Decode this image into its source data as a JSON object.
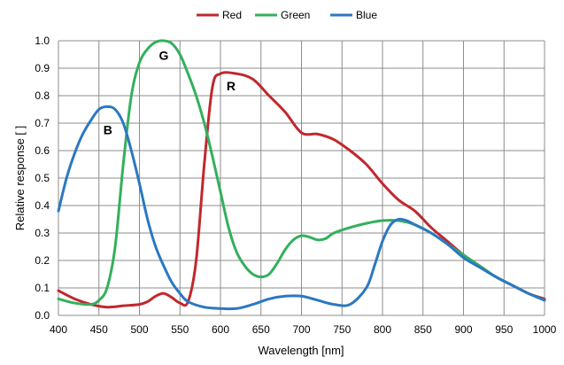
{
  "chart_data": {
    "type": "line",
    "title": "",
    "xlabel": "Wavelength [nm]",
    "ylabel": "Relative response [ ]",
    "xlim": [
      400,
      1000
    ],
    "ylim": [
      0.0,
      1.0
    ],
    "x_ticks": [
      "400",
      "450",
      "500",
      "550",
      "600",
      "650",
      "700",
      "750",
      "800",
      "850",
      "900",
      "950",
      "1000"
    ],
    "y_ticks": [
      "0.0",
      "0.1",
      "0.2",
      "0.3",
      "0.4",
      "0.5",
      "0.6",
      "0.7",
      "0.8",
      "0.9",
      "1.0"
    ],
    "grid": true,
    "legend_position": "top-center",
    "series": [
      {
        "name": "Red",
        "color": "#c0282e",
        "points": [
          [
            400,
            0.09
          ],
          [
            420,
            0.06
          ],
          [
            440,
            0.04
          ],
          [
            460,
            0.03
          ],
          [
            480,
            0.035
          ],
          [
            500,
            0.04
          ],
          [
            510,
            0.05
          ],
          [
            520,
            0.07
          ],
          [
            530,
            0.08
          ],
          [
            540,
            0.065
          ],
          [
            550,
            0.045
          ],
          [
            560,
            0.05
          ],
          [
            570,
            0.2
          ],
          [
            580,
            0.55
          ],
          [
            590,
            0.83
          ],
          [
            600,
            0.88
          ],
          [
            620,
            0.88
          ],
          [
            640,
            0.86
          ],
          [
            660,
            0.8
          ],
          [
            680,
            0.74
          ],
          [
            700,
            0.665
          ],
          [
            720,
            0.66
          ],
          [
            740,
            0.64
          ],
          [
            760,
            0.6
          ],
          [
            780,
            0.55
          ],
          [
            800,
            0.48
          ],
          [
            820,
            0.42
          ],
          [
            840,
            0.38
          ],
          [
            860,
            0.32
          ],
          [
            880,
            0.27
          ],
          [
            900,
            0.22
          ],
          [
            920,
            0.18
          ],
          [
            940,
            0.14
          ],
          [
            960,
            0.11
          ],
          [
            980,
            0.08
          ],
          [
            1000,
            0.06
          ]
        ]
      },
      {
        "name": "Green",
        "color": "#33b05c",
        "points": [
          [
            400,
            0.06
          ],
          [
            420,
            0.045
          ],
          [
            440,
            0.04
          ],
          [
            450,
            0.055
          ],
          [
            460,
            0.1
          ],
          [
            470,
            0.25
          ],
          [
            480,
            0.55
          ],
          [
            490,
            0.8
          ],
          [
            500,
            0.92
          ],
          [
            510,
            0.97
          ],
          [
            520,
            0.995
          ],
          [
            530,
            1.0
          ],
          [
            540,
            0.99
          ],
          [
            550,
            0.95
          ],
          [
            560,
            0.88
          ],
          [
            570,
            0.8
          ],
          [
            580,
            0.7
          ],
          [
            590,
            0.58
          ],
          [
            600,
            0.45
          ],
          [
            610,
            0.32
          ],
          [
            620,
            0.23
          ],
          [
            630,
            0.18
          ],
          [
            640,
            0.15
          ],
          [
            650,
            0.14
          ],
          [
            660,
            0.15
          ],
          [
            670,
            0.19
          ],
          [
            680,
            0.24
          ],
          [
            690,
            0.275
          ],
          [
            700,
            0.29
          ],
          [
            710,
            0.285
          ],
          [
            720,
            0.275
          ],
          [
            730,
            0.28
          ],
          [
            740,
            0.3
          ],
          [
            760,
            0.32
          ],
          [
            780,
            0.335
          ],
          [
            800,
            0.345
          ],
          [
            820,
            0.345
          ],
          [
            840,
            0.33
          ],
          [
            860,
            0.3
          ],
          [
            880,
            0.26
          ],
          [
            900,
            0.22
          ],
          [
            920,
            0.18
          ],
          [
            940,
            0.14
          ],
          [
            960,
            0.11
          ],
          [
            980,
            0.08
          ],
          [
            1000,
            0.055
          ]
        ]
      },
      {
        "name": "Blue",
        "color": "#2b78c2",
        "points": [
          [
            400,
            0.38
          ],
          [
            410,
            0.5
          ],
          [
            420,
            0.59
          ],
          [
            430,
            0.66
          ],
          [
            440,
            0.71
          ],
          [
            450,
            0.75
          ],
          [
            460,
            0.76
          ],
          [
            470,
            0.75
          ],
          [
            480,
            0.7
          ],
          [
            490,
            0.6
          ],
          [
            500,
            0.48
          ],
          [
            510,
            0.35
          ],
          [
            520,
            0.25
          ],
          [
            530,
            0.18
          ],
          [
            540,
            0.12
          ],
          [
            550,
            0.08
          ],
          [
            560,
            0.05
          ],
          [
            580,
            0.03
          ],
          [
            600,
            0.025
          ],
          [
            620,
            0.025
          ],
          [
            640,
            0.04
          ],
          [
            660,
            0.06
          ],
          [
            680,
            0.07
          ],
          [
            700,
            0.07
          ],
          [
            720,
            0.055
          ],
          [
            740,
            0.04
          ],
          [
            760,
            0.04
          ],
          [
            780,
            0.1
          ],
          [
            790,
            0.18
          ],
          [
            800,
            0.27
          ],
          [
            810,
            0.33
          ],
          [
            820,
            0.35
          ],
          [
            830,
            0.345
          ],
          [
            840,
            0.33
          ],
          [
            860,
            0.3
          ],
          [
            880,
            0.26
          ],
          [
            900,
            0.21
          ],
          [
            920,
            0.175
          ],
          [
            940,
            0.14
          ],
          [
            960,
            0.11
          ],
          [
            980,
            0.08
          ],
          [
            1000,
            0.055
          ]
        ]
      }
    ],
    "annotations": [
      {
        "text": "G",
        "x": 530,
        "y": 0.93
      },
      {
        "text": "R",
        "x": 613,
        "y": 0.82
      },
      {
        "text": "B",
        "x": 461,
        "y": 0.66
      }
    ]
  }
}
